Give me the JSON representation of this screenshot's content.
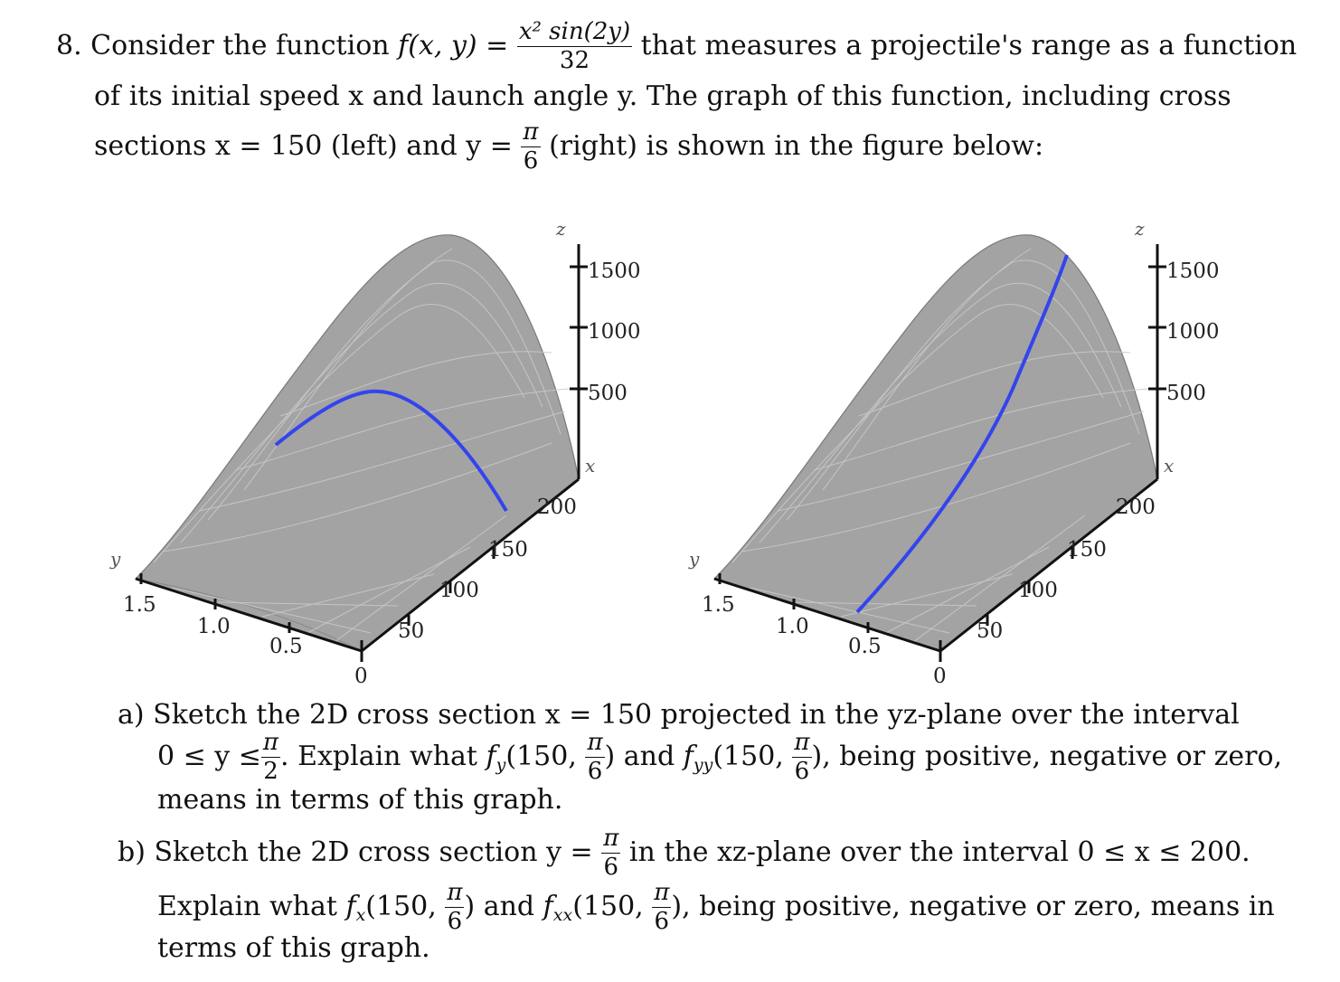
{
  "problem": {
    "number": "8.",
    "line1_pre": "Consider the function",
    "f_lhs": "f(x, y) =",
    "frac_num": "x² sin(2y)",
    "frac_den": "32",
    "line1_post": "that measures a projectile's range as a function",
    "line2": "of its initial speed x and launch angle y. The graph of this function, including cross",
    "line3_pre": "sections x = 150 (left) and y =",
    "pi": "π",
    "six": "6",
    "line3_post": "(right) is shown in the figure below:"
  },
  "figures": {
    "z_axis_label": "z",
    "x_axis_label": "x",
    "y_axis_label": "y",
    "z_ticks": [
      "1500",
      "1000",
      "500"
    ],
    "x_ticks": [
      "200",
      "150",
      "100",
      "50",
      "0"
    ],
    "y_ticks": [
      "1.5",
      "1.0",
      "0.5"
    ],
    "surface_color": "#a3a3a3",
    "curve_color": "#3344ee"
  },
  "part_a": {
    "label": "a)",
    "line1": "Sketch the 2D cross section x = 150 projected in the yz-plane over the interval",
    "line2_pre": "0 ≤ y ≤",
    "two": "2",
    "line2_mid": ". Explain what",
    "fy": "f",
    "fy_sub": "y",
    "args": "(150,",
    "close": ")",
    "and": "and",
    "fyy_sub": "yy",
    "line2_post": "), being positive, negative or zero,",
    "line3": "means in terms of this graph."
  },
  "part_b": {
    "label": "b)",
    "line1_pre": "Sketch the 2D cross section y =",
    "line1_post": "in the xz-plane over the interval 0 ≤ x ≤ 200.",
    "line2_pre": "Explain what",
    "fx_sub": "x",
    "fxx_sub": "xx",
    "line2_post": "), being positive, negative or zero, means in",
    "line3": "terms of this graph."
  }
}
